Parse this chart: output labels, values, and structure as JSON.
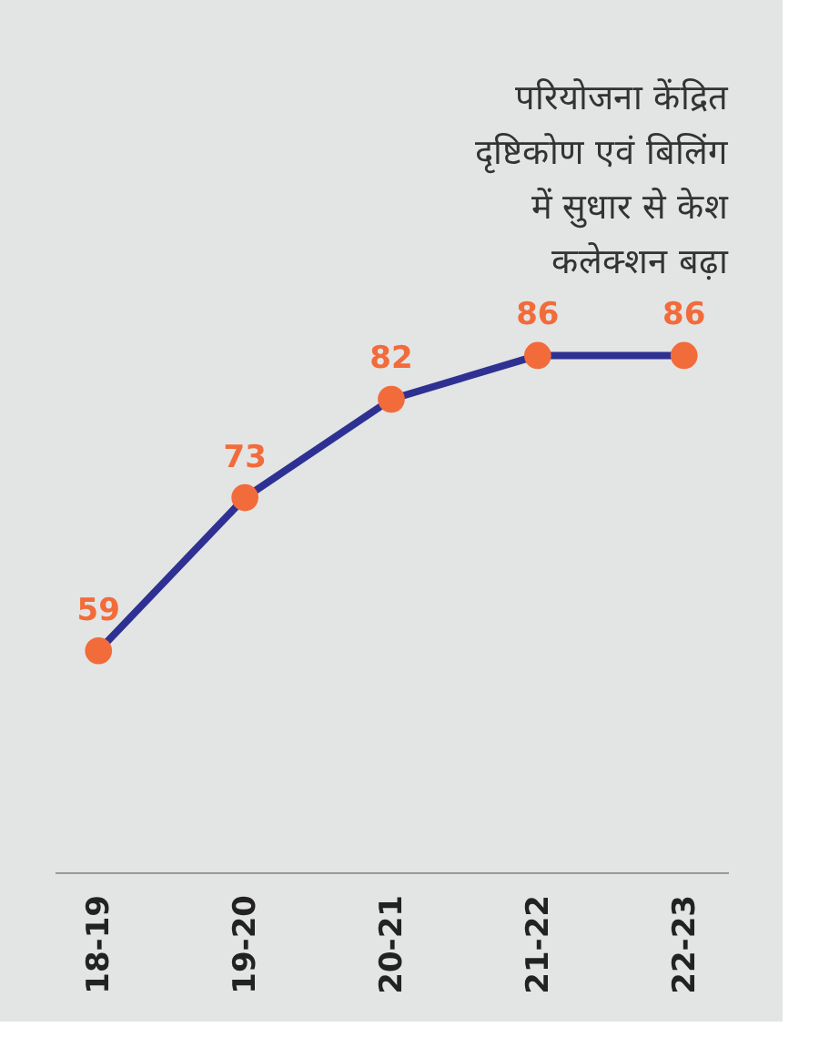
{
  "chart_data": {
    "type": "line",
    "title": "परियोजना केंद्रित दृष्टिकोण एवं बिलिंग में सुधार से केश कलेक्शन बढ़ा",
    "categories": [
      "18-19",
      "19-20",
      "20-21",
      "21-22",
      "22-23"
    ],
    "series": [
      {
        "color": "#2e3192",
        "colors": [
          "#f26b3a",
          "#f26b3a",
          "#f26b3a",
          "#f26b3a",
          "#f26b3a"
        ],
        "values": [
          59,
          73,
          82,
          86,
          86
        ]
      }
    ],
    "marker": "circle",
    "data_labels": true,
    "grid": false,
    "line_style": "solid"
  }
}
